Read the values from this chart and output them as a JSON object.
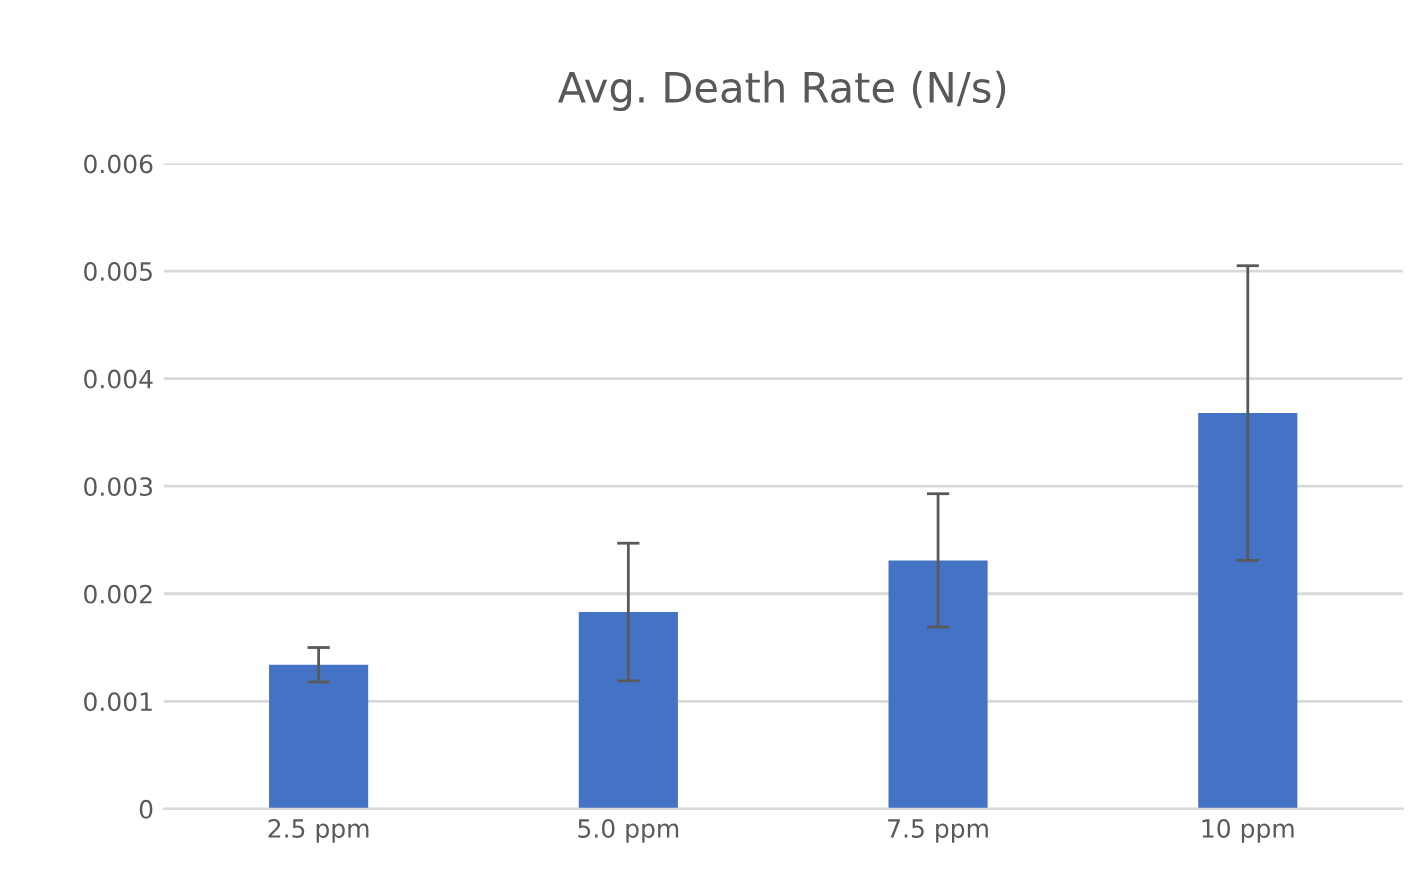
{
  "chart_data": {
    "type": "bar",
    "title": "Avg. Death Rate (N/s)",
    "categories": [
      "2.5 ppm",
      "5.0 ppm",
      "7.5 ppm",
      "10 ppm"
    ],
    "values": [
      0.00134,
      0.00183,
      0.00231,
      0.00368
    ],
    "errors": [
      0.00016,
      0.00064,
      0.00062,
      0.00137
    ],
    "color": "#4472c4",
    "ylim": [
      0,
      0.006
    ],
    "yticks": [
      {
        "value": 0,
        "label": "0"
      },
      {
        "value": 0.001,
        "label": "0.001"
      },
      {
        "value": 0.002,
        "label": "0.002"
      },
      {
        "value": 0.003,
        "label": "0.003"
      },
      {
        "value": 0.004,
        "label": "0.004"
      },
      {
        "value": 0.005,
        "label": "0.005"
      },
      {
        "value": 0.006,
        "label": "0.006"
      }
    ],
    "grid": "y"
  }
}
